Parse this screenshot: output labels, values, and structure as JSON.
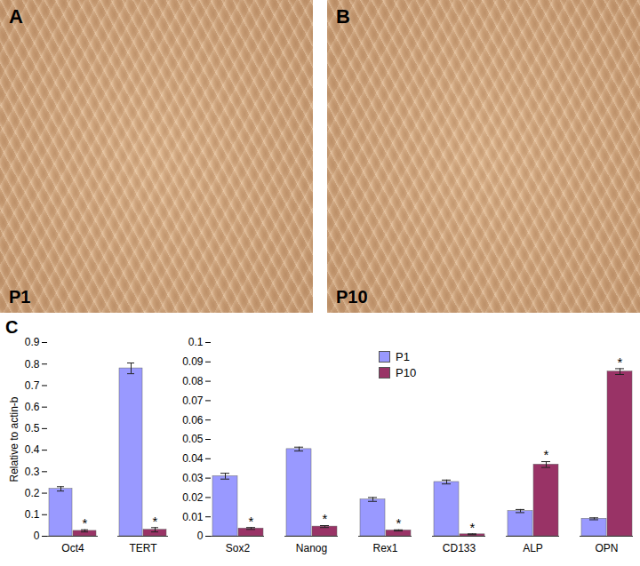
{
  "panels": [
    {
      "label": "A",
      "caption": "P1"
    },
    {
      "label": "B",
      "caption": "P10"
    }
  ],
  "chart_data": [
    {
      "type": "bar",
      "title": "C",
      "ylabel": "Relative to actin-b",
      "categories": [
        "Oct4",
        "TERT"
      ],
      "series": [
        {
          "name": "P1",
          "color": "#9999ff",
          "values": [
            0.22,
            0.78
          ],
          "errors": [
            0.01,
            0.025
          ]
        },
        {
          "name": "P10",
          "color": "#993366",
          "values": [
            0.025,
            0.03
          ],
          "errors": [
            0.005,
            0.01
          ],
          "significance": [
            "*",
            "*"
          ]
        }
      ],
      "ylim": [
        0,
        0.9
      ],
      "yticks": [
        0,
        0.1,
        0.2,
        0.3,
        0.4,
        0.5,
        0.6,
        0.7,
        0.8,
        0.9
      ],
      "grid": false
    },
    {
      "type": "bar",
      "categories": [
        "Sox2",
        "Nanog",
        "Rex1",
        "CD133",
        "ALP",
        "OPN"
      ],
      "series": [
        {
          "name": "P1",
          "color": "#9999ff",
          "values": [
            0.031,
            0.045,
            0.019,
            0.028,
            0.013,
            0.009
          ],
          "errors": [
            0.0015,
            0.001,
            0.001,
            0.001,
            0.0008,
            0.0005
          ]
        },
        {
          "name": "P10",
          "color": "#993366",
          "values": [
            0.004,
            0.005,
            0.003,
            0.001,
            0.037,
            0.085
          ],
          "errors": [
            0.0005,
            0.0005,
            0.0003,
            0.0002,
            0.0015,
            0.0015
          ],
          "significance": [
            "*",
            "*",
            "*",
            "*",
            "*",
            "*"
          ]
        }
      ],
      "ylim": [
        0,
        0.1
      ],
      "yticks": [
        0,
        0.01,
        0.02,
        0.03,
        0.04,
        0.05,
        0.06,
        0.07,
        0.08,
        0.09,
        0.1
      ],
      "grid": false,
      "legend": "top"
    }
  ]
}
